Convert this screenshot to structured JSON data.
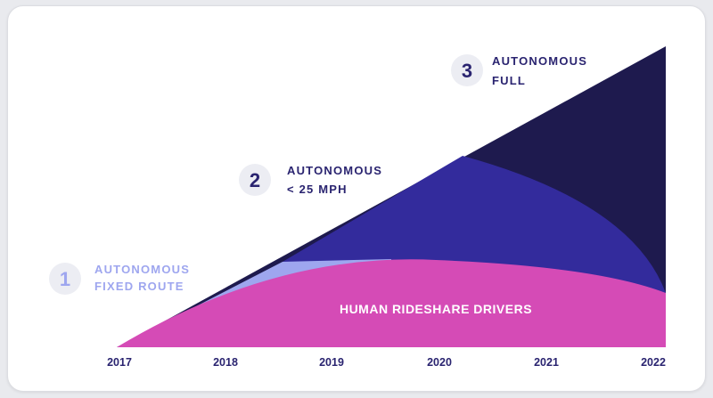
{
  "chart_data": {
    "type": "area",
    "x": [
      "2017",
      "2018",
      "2019",
      "2020",
      "2021",
      "2022"
    ],
    "stages": [
      {
        "number": "1",
        "line1": "AUTONOMOUS",
        "line2": "FIXED ROUTE"
      },
      {
        "number": "2",
        "line1": "AUTONOMOUS",
        "line2": "< 25 MPH"
      },
      {
        "number": "3",
        "line1": "AUTONOMOUS",
        "line2": "FULL"
      }
    ],
    "area_label": "HUMAN RIDESHARE DRIVERS",
    "grid": false,
    "legend": "none"
  },
  "colors": {
    "human": "#d54bb6",
    "fixed_route": "#9ea6ef",
    "lt25": "#332b9c",
    "full": "#1e1a4e",
    "badge_bg": "#ecedf3",
    "badge1_text": "#9ea6ef",
    "label1_text": "#9ea6ef",
    "dark_text": "#2a2470"
  }
}
